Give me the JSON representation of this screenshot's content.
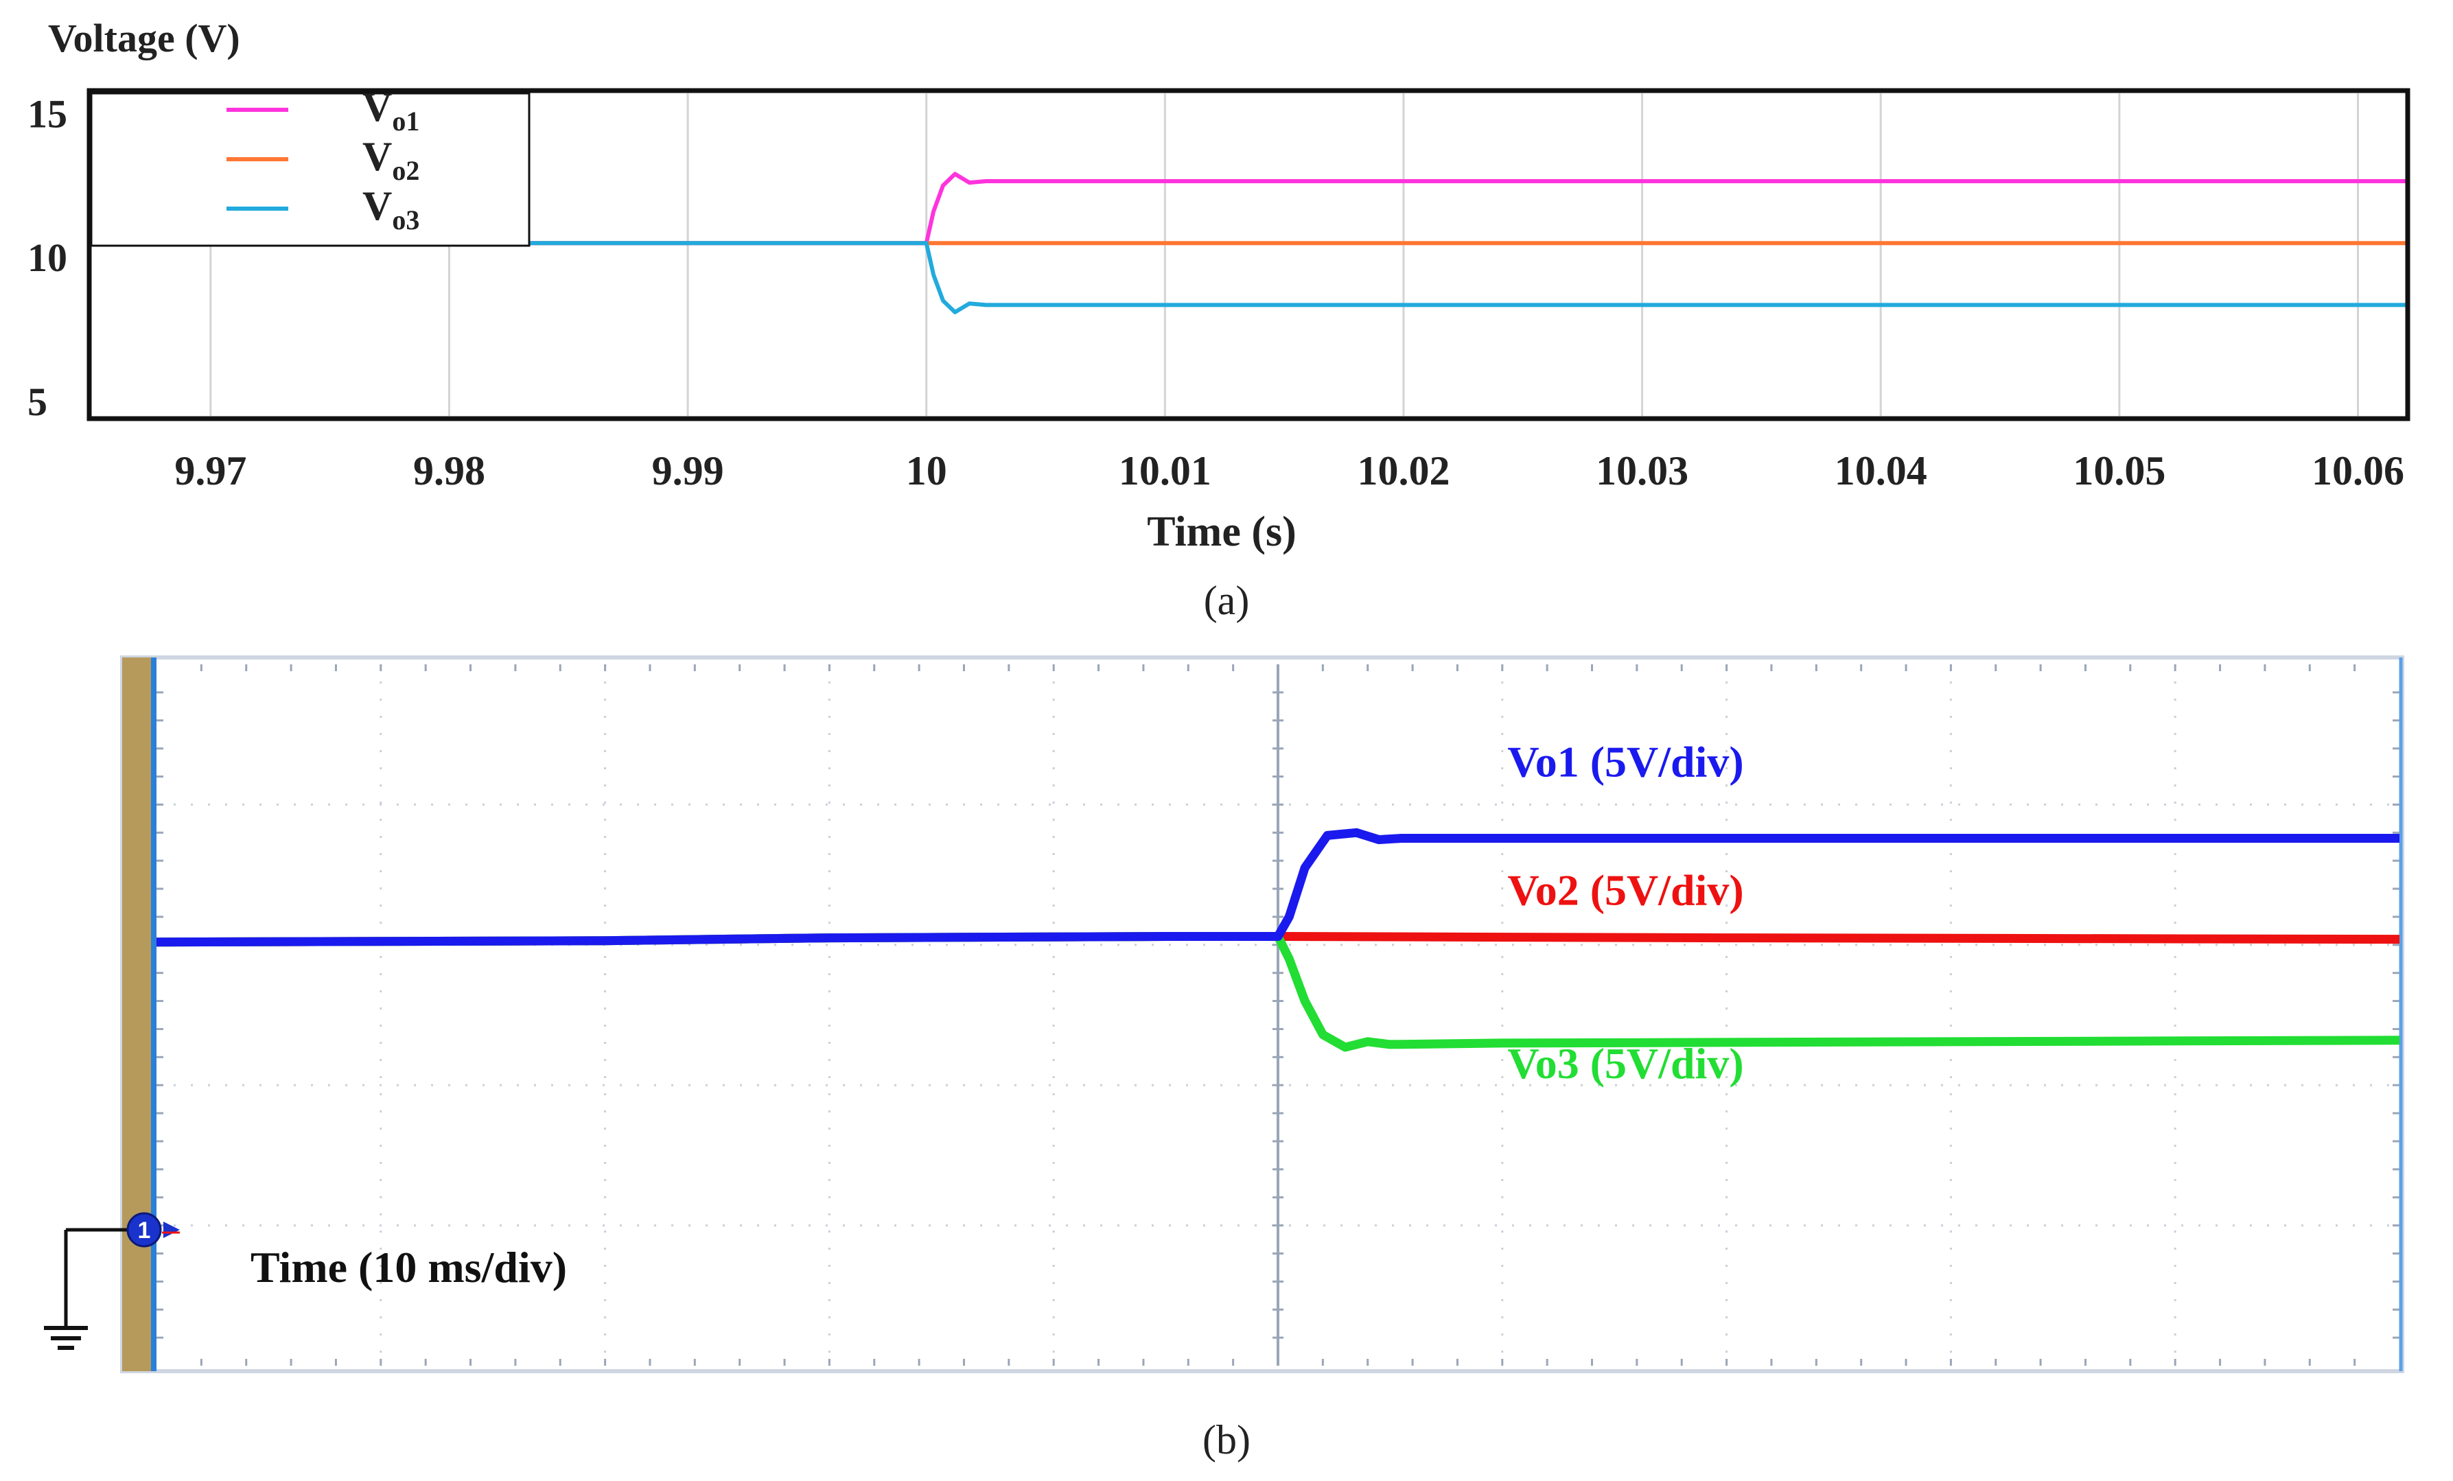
{
  "chart_data": [
    {
      "type": "line",
      "panel_label": "(a)",
      "ylabel": "Voltage (V)",
      "xlabel": "Time (s)",
      "xlim": [
        9.965,
        10.062
      ],
      "ylim": [
        4.5,
        15.7
      ],
      "yticks": [
        5,
        10,
        15
      ],
      "ytick_labels": [
        "5",
        "10",
        "15"
      ],
      "xticks": [
        9.97,
        9.98,
        9.99,
        10,
        10.01,
        10.02,
        10.03,
        10.04,
        10.05,
        10.06
      ],
      "xtick_labels": [
        "9.97",
        "9.98",
        "9.99",
        "10",
        "10.01",
        "10.02",
        "10.03",
        "10.04",
        "10.05",
        "10.06"
      ],
      "grid": true,
      "legend_position": "top-left",
      "series": [
        {
          "name": "Vo1",
          "legend_main": "V",
          "legend_sub": "o1",
          "color": "#ff33dd",
          "x": [
            9.965,
            10.0,
            10.0003,
            10.0007,
            10.0012,
            10.0018,
            10.0025,
            10.062
          ],
          "y": [
            10.5,
            10.5,
            11.6,
            12.5,
            12.9,
            12.6,
            12.65,
            12.65
          ]
        },
        {
          "name": "Vo2",
          "legend_main": "V",
          "legend_sub": "o2",
          "color": "#ff7733",
          "x": [
            9.965,
            10.062
          ],
          "y": [
            10.5,
            10.5
          ]
        },
        {
          "name": "Vo3",
          "legend_main": "V",
          "legend_sub": "o3",
          "color": "#22aadd",
          "x": [
            9.965,
            10.0,
            10.0003,
            10.0007,
            10.0012,
            10.0018,
            10.0025,
            10.062
          ],
          "y": [
            10.5,
            10.5,
            9.4,
            8.5,
            8.1,
            8.4,
            8.35,
            8.35
          ]
        }
      ]
    },
    {
      "type": "line",
      "panel_label": "(b)",
      "time_label": "Time (10 ms/div)",
      "ground_marker": "1",
      "x_divisions": 10,
      "y_divisions": 5,
      "xlim": [
        0,
        10
      ],
      "ylim": [
        0,
        5
      ],
      "grid": true,
      "series": [
        {
          "name": "Vo1",
          "label": "Vo1 (5V/div)",
          "color": "#1a1aee",
          "x": [
            0,
            2,
            3,
            4.5,
            5,
            5.05,
            5.12,
            5.22,
            5.35,
            5.45,
            5.55,
            6,
            10
          ],
          "y": [
            3.02,
            3.03,
            3.05,
            3.06,
            3.06,
            3.2,
            3.55,
            3.78,
            3.8,
            3.75,
            3.76,
            3.76,
            3.76
          ]
        },
        {
          "name": "Vo2",
          "label": "Vo2 (5V/div)",
          "color": "#ee1111",
          "x": [
            0,
            2,
            3,
            4.5,
            5,
            7,
            10
          ],
          "y": [
            3.02,
            3.03,
            3.05,
            3.06,
            3.06,
            3.05,
            3.04
          ]
        },
        {
          "name": "Vo3",
          "label": "Vo3 (5V/div)",
          "color": "#22dd33",
          "x": [
            0,
            2,
            3,
            4.5,
            5,
            5.05,
            5.12,
            5.2,
            5.3,
            5.4,
            5.5,
            6,
            10
          ],
          "y": [
            3.02,
            3.03,
            3.05,
            3.06,
            3.06,
            2.9,
            2.6,
            2.36,
            2.27,
            2.31,
            2.29,
            2.3,
            2.32
          ]
        }
      ]
    }
  ]
}
